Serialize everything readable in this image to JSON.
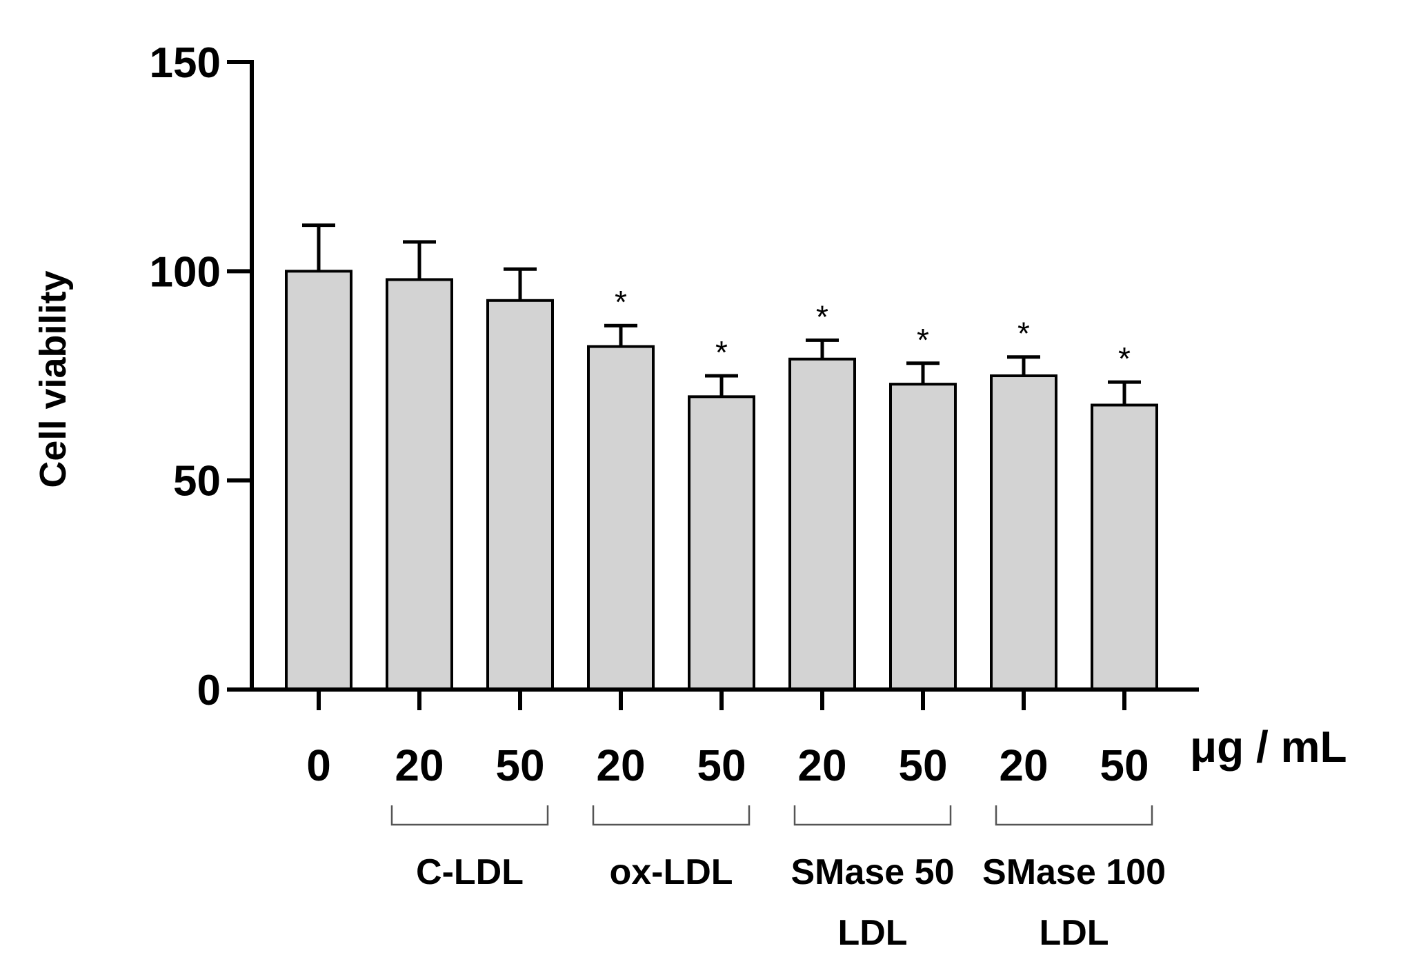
{
  "chart_data": {
    "type": "bar",
    "title": "",
    "ylabel": "Cell viability",
    "xlabel": "",
    "unit_label": "μg / mL",
    "ylim": [
      0,
      150
    ],
    "yticks": [
      "0",
      "50",
      "100",
      "150"
    ],
    "categories": [
      "0",
      "20",
      "50",
      "20",
      "50",
      "20",
      "50",
      "20",
      "50"
    ],
    "values": [
      100,
      98,
      93,
      82,
      70,
      79,
      73,
      75,
      68
    ],
    "errors": [
      11,
      9,
      7.5,
      5,
      5,
      4.5,
      5,
      4.5,
      5.5
    ],
    "significance": [
      "",
      "",
      "",
      "*",
      "*",
      "*",
      "*",
      "*",
      "*"
    ],
    "bar_color": "#d3d3d3",
    "groups": [
      {
        "lines": [
          "C-LDL"
        ],
        "from": 1,
        "to": 2
      },
      {
        "lines": [
          "ox-LDL"
        ],
        "from": 3,
        "to": 4
      },
      {
        "lines": [
          "SMase 50",
          "LDL"
        ],
        "from": 5,
        "to": 6
      },
      {
        "lines": [
          "SMase 100",
          "LDL"
        ],
        "from": 7,
        "to": 8
      }
    ]
  }
}
